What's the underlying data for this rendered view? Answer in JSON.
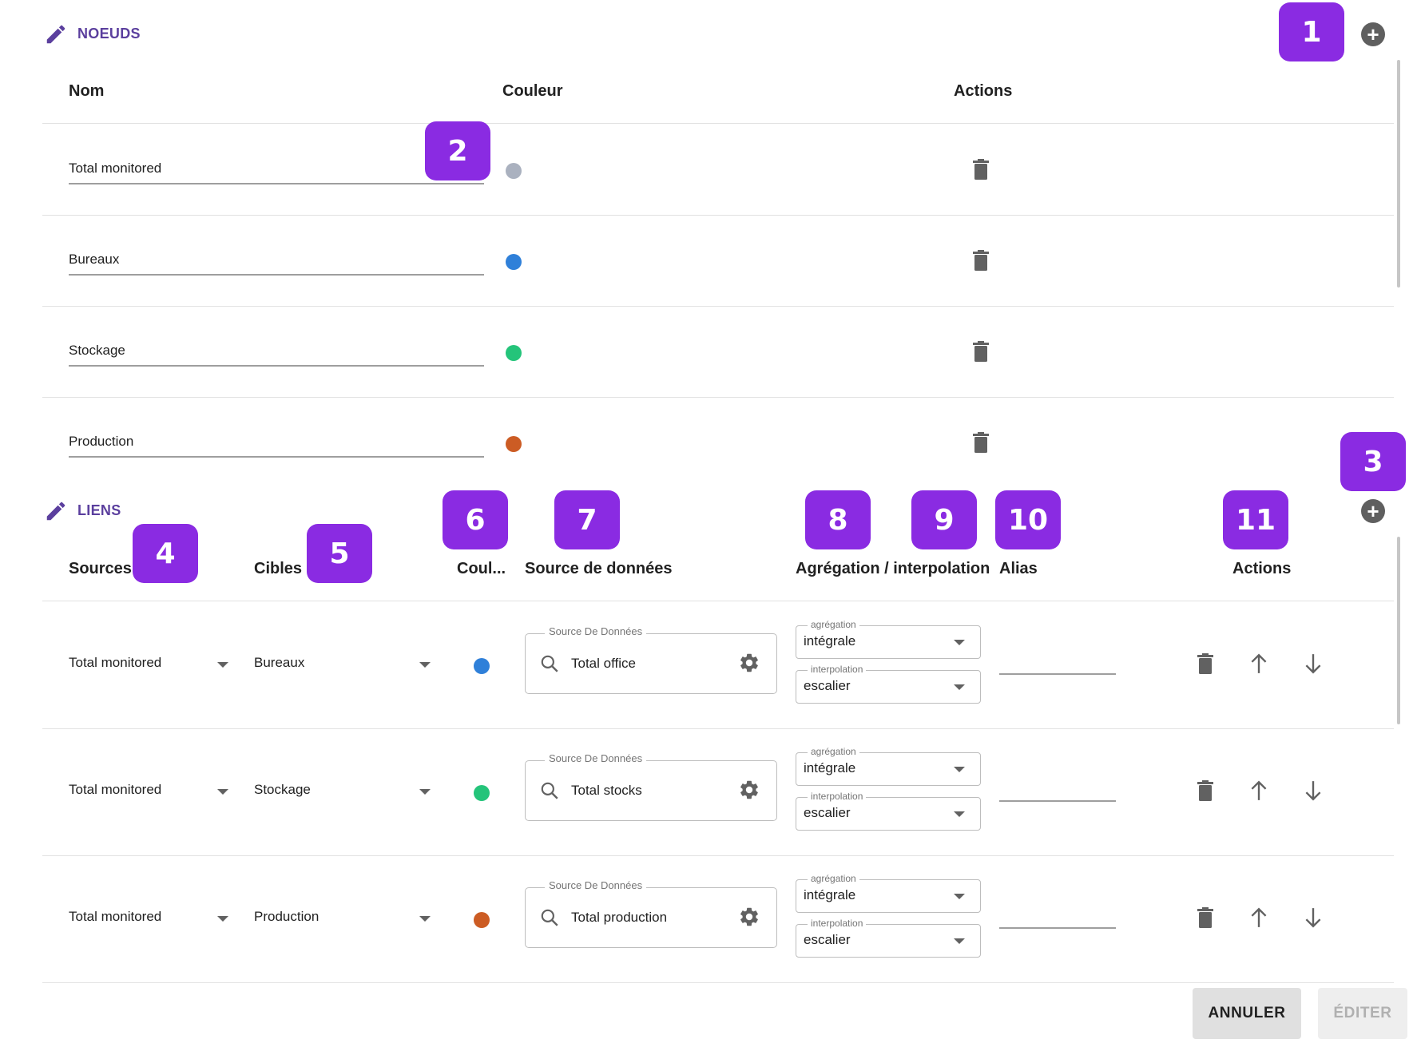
{
  "nodes_section": {
    "title": "NOEUDS",
    "headers": {
      "name": "Nom",
      "color": "Couleur",
      "actions": "Actions"
    },
    "rows": [
      {
        "name": "Total monitored",
        "color": "#aab1bf"
      },
      {
        "name": "Bureaux",
        "color": "#2f80d9"
      },
      {
        "name": "Stockage",
        "color": "#24c47a"
      },
      {
        "name": "Production",
        "color": "#cc5c24"
      }
    ]
  },
  "links_section": {
    "title": "LIENS",
    "headers": {
      "sources": "Sources",
      "targets": "Cibles",
      "color": "Coul...",
      "datasource": "Source de données",
      "agg_interp": "Agrégation / interpolation",
      "alias": "Alias",
      "actions": "Actions"
    },
    "datasource_legend": "Source De Données",
    "aggregation_legend": "agrégation",
    "interpolation_legend": "interpolation",
    "rows": [
      {
        "source": "Total monitored",
        "target": "Bureaux",
        "color": "#2f80d9",
        "datasource": "Total office",
        "aggregation": "intégrale",
        "interpolation": "escalier",
        "alias": ""
      },
      {
        "source": "Total monitored",
        "target": "Stockage",
        "color": "#24c47a",
        "datasource": "Total stocks",
        "aggregation": "intégrale",
        "interpolation": "escalier",
        "alias": ""
      },
      {
        "source": "Total monitored",
        "target": "Production",
        "color": "#cc5c24",
        "datasource": "Total production",
        "aggregation": "intégrale",
        "interpolation": "escalier",
        "alias": ""
      }
    ]
  },
  "callouts": [
    "1",
    "2",
    "3",
    "4",
    "5",
    "6",
    "7",
    "8",
    "9",
    "10",
    "11"
  ],
  "footer": {
    "cancel_label": "ANNULER",
    "edit_label": "ÉDITER"
  },
  "colors": {
    "accent": "#5b3f9e",
    "badge": "#8a2be2"
  }
}
